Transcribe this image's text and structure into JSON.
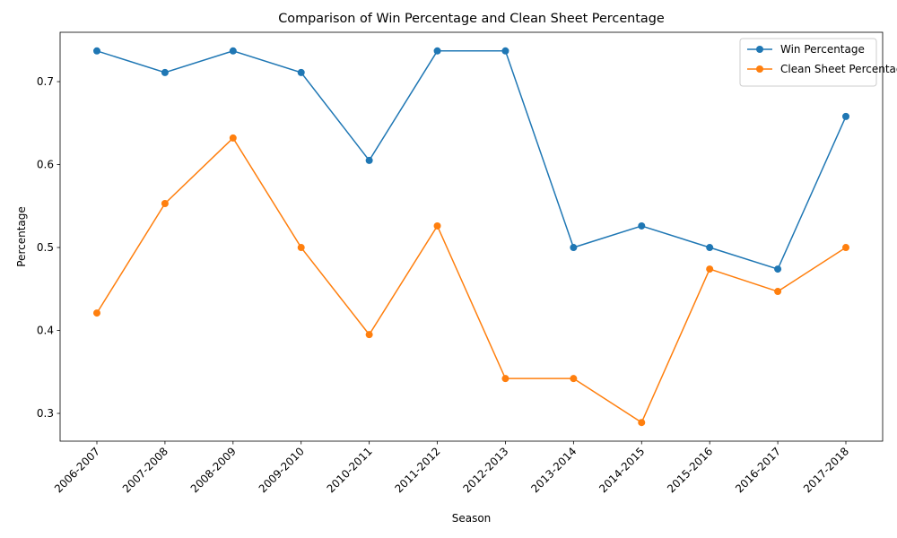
{
  "chart_data": {
    "type": "line",
    "title": "Comparison of Win Percentage and Clean Sheet Percentage",
    "xlabel": "Season",
    "ylabel": "Percentage",
    "categories": [
      "2006-2007",
      "2007-2008",
      "2008-2009",
      "2009-2010",
      "2010-2011",
      "2011-2012",
      "2012-2013",
      "2013-2014",
      "2014-2015",
      "2015-2016",
      "2016-2017",
      "2017-2018"
    ],
    "series": [
      {
        "name": "Win Percentage",
        "color": "#1f77b4",
        "values": [
          0.737,
          0.711,
          0.737,
          0.711,
          0.605,
          0.737,
          0.737,
          0.5,
          0.526,
          0.5,
          0.474,
          0.658
        ]
      },
      {
        "name": "Clean Sheet Percentage",
        "color": "#ff7f0e",
        "values": [
          0.421,
          0.553,
          0.632,
          0.5,
          0.395,
          0.526,
          0.342,
          0.342,
          0.289,
          0.474,
          0.447,
          0.5
        ]
      }
    ],
    "yticks": [
      "0.3",
      "0.4",
      "0.5",
      "0.6",
      "0.7"
    ],
    "ylim": [
      0.2665,
      0.7595
    ],
    "legend_position": "top-right",
    "grid": false
  }
}
